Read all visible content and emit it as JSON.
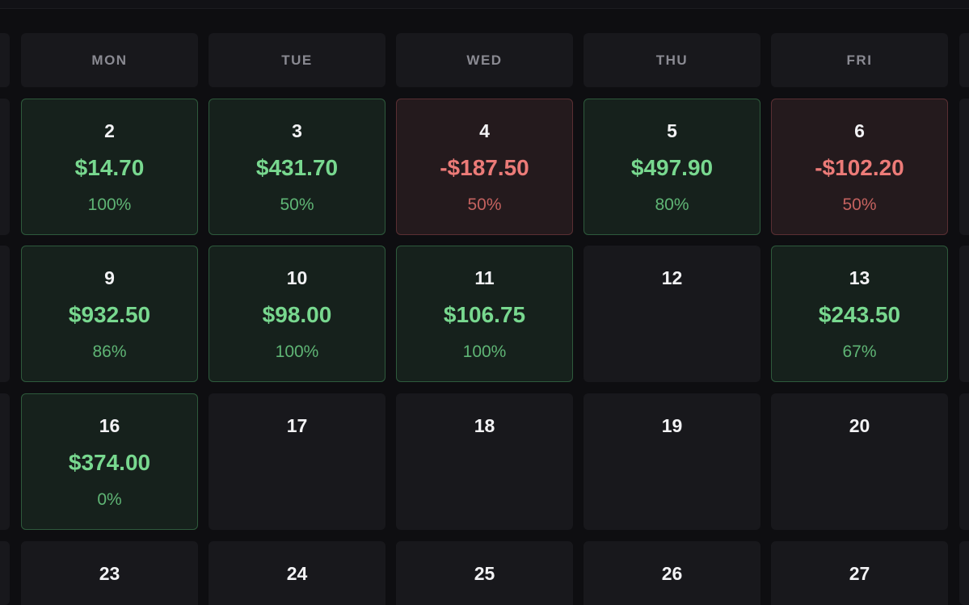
{
  "weekdays": [
    "MON",
    "TUE",
    "WED",
    "THU",
    "FRI"
  ],
  "weeks": [
    [
      {
        "day": "2",
        "pnl": "$14.70",
        "pct": "100%",
        "status": "positive"
      },
      {
        "day": "3",
        "pnl": "$431.70",
        "pct": "50%",
        "status": "positive"
      },
      {
        "day": "4",
        "pnl": "-$187.50",
        "pct": "50%",
        "status": "negative"
      },
      {
        "day": "5",
        "pnl": "$497.90",
        "pct": "80%",
        "status": "positive"
      },
      {
        "day": "6",
        "pnl": "-$102.20",
        "pct": "50%",
        "status": "negative"
      }
    ],
    [
      {
        "day": "9",
        "pnl": "$932.50",
        "pct": "86%",
        "status": "positive"
      },
      {
        "day": "10",
        "pnl": "$98.00",
        "pct": "100%",
        "status": "positive"
      },
      {
        "day": "11",
        "pnl": "$106.75",
        "pct": "100%",
        "status": "positive"
      },
      {
        "day": "12",
        "pnl": "",
        "pct": "",
        "status": "empty"
      },
      {
        "day": "13",
        "pnl": "$243.50",
        "pct": "67%",
        "status": "positive"
      }
    ],
    [
      {
        "day": "16",
        "pnl": "$374.00",
        "pct": "0%",
        "status": "positive"
      },
      {
        "day": "17",
        "pnl": "",
        "pct": "",
        "status": "empty"
      },
      {
        "day": "18",
        "pnl": "",
        "pct": "",
        "status": "empty"
      },
      {
        "day": "19",
        "pnl": "",
        "pct": "",
        "status": "empty"
      },
      {
        "day": "20",
        "pnl": "",
        "pct": "",
        "status": "empty"
      }
    ],
    [
      {
        "day": "23",
        "pnl": "",
        "pct": "",
        "status": "empty"
      },
      {
        "day": "24",
        "pnl": "",
        "pct": "",
        "status": "empty"
      },
      {
        "day": "25",
        "pnl": "",
        "pct": "",
        "status": "empty"
      },
      {
        "day": "26",
        "pnl": "",
        "pct": "",
        "status": "empty"
      },
      {
        "day": "27",
        "pnl": "",
        "pct": "",
        "status": "empty"
      }
    ]
  ],
  "colors": {
    "background": "#0e0e11",
    "cell": "#18181c",
    "positive_text": "#78d88f",
    "negative_text": "#ec7b78",
    "positive_border": "#2e5a3c",
    "negative_border": "#5a2f33"
  }
}
